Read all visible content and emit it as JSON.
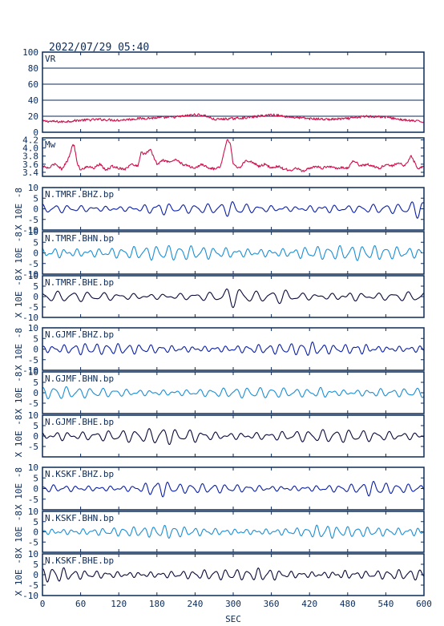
{
  "header": {
    "datetime": "2022/07/29 05:40"
  },
  "x_axis": {
    "label": "SEC",
    "range": [
      0,
      600
    ],
    "ticks": [
      0,
      60,
      120,
      180,
      240,
      300,
      360,
      420,
      480,
      540,
      600
    ]
  },
  "colors": {
    "frame": "#0b2a57",
    "vr_mw_trace": "#d0104c",
    "bhz_trace": "#0a1fa8",
    "bhn_trace": "#1a8fd6",
    "bhe_trace": "#0a0a3a"
  },
  "chart_data": [
    {
      "type": "line",
      "panel_label": "VR",
      "ylim": [
        0,
        100
      ],
      "yticks": [
        0,
        20,
        40,
        60,
        80,
        100
      ],
      "grid": true,
      "series": [
        {
          "color": "#d0104c",
          "x": [
            0,
            30,
            60,
            90,
            120,
            150,
            180,
            210,
            240,
            255,
            270,
            300,
            330,
            360,
            390,
            420,
            450,
            480,
            510,
            540,
            570,
            600
          ],
          "y": [
            14,
            13,
            15,
            16,
            15,
            17,
            18,
            19,
            22,
            21,
            16,
            17,
            19,
            22,
            19,
            17,
            16,
            17,
            20,
            19,
            15,
            13
          ]
        }
      ]
    },
    {
      "type": "line",
      "panel_label": "Mw",
      "ylim": [
        3.3,
        4.25
      ],
      "yticks": [
        3.4,
        3.6,
        3.8,
        4.0,
        4.2
      ],
      "ytick_labels": [
        "3.4",
        "3.6",
        "3.8",
        "4.0",
        "4.2"
      ],
      "series": [
        {
          "color": "#d0104c",
          "x": [
            0,
            10,
            20,
            30,
            40,
            48,
            50,
            55,
            60,
            70,
            80,
            90,
            100,
            110,
            120,
            130,
            140,
            150,
            155,
            160,
            170,
            180,
            190,
            200,
            210,
            220,
            230,
            240,
            250,
            260,
            270,
            280,
            290,
            295,
            300,
            310,
            320,
            330,
            340,
            350,
            360,
            370,
            380,
            390,
            400,
            410,
            420,
            430,
            440,
            450,
            460,
            470,
            480,
            490,
            500,
            510,
            520,
            530,
            540,
            550,
            560,
            570,
            580,
            590,
            600
          ],
          "y": [
            3.55,
            3.5,
            3.62,
            3.48,
            3.7,
            4.1,
            4.05,
            3.6,
            3.45,
            3.55,
            3.5,
            3.6,
            3.45,
            3.55,
            3.5,
            3.48,
            3.6,
            3.55,
            3.9,
            3.85,
            3.95,
            3.6,
            3.7,
            3.65,
            3.72,
            3.6,
            3.55,
            3.5,
            3.6,
            3.52,
            3.48,
            3.55,
            4.2,
            4.15,
            3.6,
            3.5,
            3.7,
            3.65,
            3.55,
            3.6,
            3.5,
            3.55,
            3.48,
            3.45,
            3.5,
            3.42,
            3.5,
            3.55,
            3.5,
            3.55,
            3.5,
            3.52,
            3.5,
            3.7,
            3.55,
            3.6,
            3.55,
            3.5,
            3.6,
            3.55,
            3.65,
            3.55,
            3.8,
            3.5,
            3.55
          ]
        }
      ]
    },
    {
      "type": "line",
      "panel_label": "N.TMRF.BHZ.bp",
      "ylabel": "X 10E -8",
      "ylim": [
        -10,
        10
      ],
      "yticks": [
        -10,
        -5,
        0,
        5,
        10
      ],
      "series": [
        {
          "color": "#0a1fa8",
          "amplitude": 1.6,
          "period_sec": 20,
          "seed": 11,
          "bursts": [
            {
              "x": 180,
              "amp": 3.5
            },
            {
              "x": 300,
              "amp": 3
            },
            {
              "x": 440,
              "amp": 2.8
            },
            {
              "x": 598,
              "amp": 4
            }
          ]
        }
      ]
    },
    {
      "type": "line",
      "panel_label": "N.TMRF.BHN.bp",
      "ylabel": "X 10E -8",
      "ylim": [
        -10,
        10
      ],
      "yticks": [
        -10,
        -5,
        0,
        5,
        10
      ],
      "series": [
        {
          "color": "#1a8fd6",
          "amplitude": 2.5,
          "period_sec": 18,
          "seed": 23,
          "bursts": [
            {
              "x": 30,
              "amp": 3
            },
            {
              "x": 200,
              "amp": 2.5
            },
            {
              "x": 420,
              "amp": 3
            }
          ]
        }
      ]
    },
    {
      "type": "line",
      "panel_label": "N.TMRF.BHE.bp",
      "ylabel": "X 10E -8",
      "ylim": [
        -10,
        10
      ],
      "yticks": [
        -10,
        -5,
        0,
        5,
        10
      ],
      "series": [
        {
          "color": "#0a0a3a",
          "amplitude": 1.8,
          "period_sec": 24,
          "seed": 37,
          "bursts": [
            {
              "x": 300,
              "amp": 4
            },
            {
              "x": 380,
              "amp": 3
            },
            {
              "x": 480,
              "amp": 3.5
            }
          ]
        }
      ]
    },
    {
      "type": "line",
      "panel_label": "N.GJMF.BHZ.bp",
      "ylabel": "X 10E -8",
      "ylim": [
        -10,
        10
      ],
      "yticks": [
        -10,
        -5,
        0,
        5,
        10
      ],
      "series": [
        {
          "color": "#0a1fa8",
          "amplitude": 1.8,
          "period_sec": 17,
          "seed": 41,
          "bursts": [
            {
              "x": 60,
              "amp": 2.2
            },
            {
              "x": 420,
              "amp": 2.5
            },
            {
              "x": 500,
              "amp": 3
            }
          ]
        }
      ]
    },
    {
      "type": "line",
      "panel_label": "N.GJMF.BHN.bp",
      "ylabel": "X 10E -8",
      "ylim": [
        -10,
        10
      ],
      "yticks": [
        -5,
        0,
        5,
        10
      ],
      "series": [
        {
          "color": "#1a8fd6",
          "amplitude": 1.8,
          "period_sec": 19,
          "seed": 53,
          "bursts": [
            {
              "x": 20,
              "amp": 2.5
            },
            {
              "x": 440,
              "amp": 3
            },
            {
              "x": 520,
              "amp": 2.5
            }
          ]
        }
      ]
    },
    {
      "type": "line",
      "panel_label": "N.GJMF.BHE.bp",
      "ylabel": "X 10E -8",
      "ylim": [
        -10,
        10
      ],
      "yticks": [
        -5,
        0,
        5,
        10
      ],
      "series": [
        {
          "color": "#0a0a3a",
          "amplitude": 2.2,
          "period_sec": 21,
          "seed": 67,
          "bursts": [
            {
              "x": 30,
              "amp": 3
            },
            {
              "x": 190,
              "amp": 3.5
            },
            {
              "x": 240,
              "amp": 3
            }
          ]
        }
      ]
    },
    {
      "type": "line",
      "panel_label": "N.KSKF.BHZ.bp",
      "ylabel": "X 10E -8",
      "ylim": [
        -10,
        10
      ],
      "yticks": [
        -5,
        0,
        5,
        10
      ],
      "series": [
        {
          "color": "#0a1fa8",
          "amplitude": 1.6,
          "period_sec": 18,
          "seed": 71,
          "bursts": [
            {
              "x": 180,
              "amp": 4
            },
            {
              "x": 520,
              "amp": 2.8
            }
          ]
        }
      ]
    },
    {
      "type": "line",
      "panel_label": "N.KSKF.BHN.bp",
      "ylabel": "X 10E -8",
      "ylim": [
        -10,
        10
      ],
      "yticks": [
        -5,
        0,
        5,
        10
      ],
      "series": [
        {
          "color": "#1a8fd6",
          "amplitude": 1.8,
          "period_sec": 16,
          "seed": 83,
          "bursts": [
            {
              "x": 200,
              "amp": 2.5
            },
            {
              "x": 440,
              "amp": 2.8
            },
            {
              "x": 590,
              "amp": 2.5
            }
          ]
        }
      ]
    },
    {
      "type": "line",
      "panel_label": "N.KSKF.BHE.bp",
      "ylabel": "X 10E -8",
      "ylim": [
        -10,
        10
      ],
      "yticks": [
        -10,
        -5,
        0,
        5,
        10
      ],
      "series": [
        {
          "color": "#0a0a3a",
          "amplitude": 1.8,
          "period_sec": 17,
          "seed": 97,
          "bursts": [
            {
              "x": 20,
              "amp": 3
            },
            {
              "x": 350,
              "amp": 2.8
            },
            {
              "x": 470,
              "amp": 2.8
            }
          ]
        }
      ]
    }
  ]
}
